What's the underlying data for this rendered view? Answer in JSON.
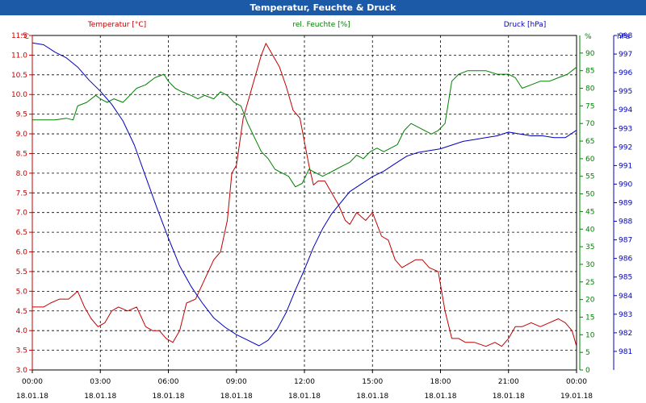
{
  "window": {
    "title": "Temperatur, Feuchte & Druck"
  },
  "chart_data": {
    "type": "line",
    "x_ticks": [
      {
        "time": "00:00",
        "date": "18.01.18"
      },
      {
        "time": "03:00",
        "date": "18.01.18"
      },
      {
        "time": "06:00",
        "date": "18.01.18"
      },
      {
        "time": "09:00",
        "date": "18.01.18"
      },
      {
        "time": "12:00",
        "date": "18.01.18"
      },
      {
        "time": "15:00",
        "date": "18.01.18"
      },
      {
        "time": "18:00",
        "date": "18.01.18"
      },
      {
        "time": "21:00",
        "date": "18.01.18"
      },
      {
        "time": "00:00",
        "date": "19.01.18"
      }
    ],
    "xlim": [
      0,
      24
    ],
    "grid": true,
    "axes": {
      "temperature": {
        "label": "Temperatur [°C]",
        "unit": "°C",
        "ylim": [
          3.0,
          11.5
        ],
        "step": 0.5,
        "color": "#c00000"
      },
      "humidity": {
        "label": "rel. Feuchte [%]",
        "unit": "%",
        "ylim": [
          0,
          95
        ],
        "step": 5,
        "color": "#008000"
      },
      "pressure": {
        "label": "Druck [hPa]",
        "unit": "hPa",
        "ylim": [
          980.0,
          998.0
        ],
        "step": 1,
        "color": "#0000c0"
      }
    },
    "series": [
      {
        "name": "Temperatur [°C]",
        "axis": "temperature",
        "color": "#c00000",
        "x": [
          0,
          0.5,
          0.8,
          1.2,
          1.6,
          2.0,
          2.3,
          2.6,
          2.9,
          3.2,
          3.5,
          3.8,
          4.2,
          4.6,
          5.0,
          5.3,
          5.6,
          5.9,
          6.2,
          6.5,
          6.8,
          7.2,
          7.6,
          8.0,
          8.3,
          8.6,
          8.8,
          9.0,
          9.3,
          9.6,
          9.9,
          10.1,
          10.3,
          10.6,
          10.9,
          11.2,
          11.5,
          11.8,
          12.0,
          12.2,
          12.4,
          12.6,
          12.9,
          13.2,
          13.5,
          13.8,
          14.0,
          14.3,
          14.7,
          15.0,
          15.4,
          15.7,
          16.0,
          16.3,
          16.6,
          16.9,
          17.2,
          17.5,
          17.9,
          18.2,
          18.5,
          18.8,
          19.1,
          19.5,
          20.0,
          20.4,
          20.7,
          21.0,
          21.3,
          21.6,
          22.0,
          22.4,
          22.8,
          23.2,
          23.5,
          23.8,
          24.0
        ],
        "y": [
          4.6,
          4.6,
          4.7,
          4.8,
          4.8,
          5.0,
          4.6,
          4.3,
          4.1,
          4.2,
          4.5,
          4.6,
          4.5,
          4.6,
          4.1,
          4.0,
          4.0,
          3.8,
          3.7,
          4.0,
          4.7,
          4.8,
          5.3,
          5.8,
          6.0,
          6.8,
          8.0,
          8.2,
          9.4,
          10.0,
          10.6,
          11.0,
          11.3,
          11.0,
          10.7,
          10.2,
          9.6,
          9.4,
          8.8,
          8.2,
          7.7,
          7.8,
          7.8,
          7.5,
          7.2,
          6.8,
          6.7,
          7.0,
          6.8,
          7.0,
          6.4,
          6.3,
          5.8,
          5.6,
          5.7,
          5.8,
          5.8,
          5.6,
          5.5,
          4.5,
          3.8,
          3.8,
          3.7,
          3.7,
          3.6,
          3.7,
          3.6,
          3.8,
          4.1,
          4.1,
          4.2,
          4.1,
          4.2,
          4.3,
          4.2,
          4.0,
          3.6
        ]
      },
      {
        "name": "rel. Feuchte [%]",
        "axis": "humidity",
        "color": "#008000",
        "x": [
          0,
          0.5,
          1.0,
          1.5,
          1.8,
          2.0,
          2.4,
          2.8,
          3.0,
          3.3,
          3.6,
          4.0,
          4.3,
          4.6,
          5.0,
          5.4,
          5.8,
          6.0,
          6.3,
          6.6,
          7.0,
          7.3,
          7.6,
          8.0,
          8.3,
          8.6,
          8.9,
          9.2,
          9.5,
          9.8,
          10.1,
          10.4,
          10.7,
          11.0,
          11.3,
          11.6,
          11.9,
          12.2,
          12.5,
          12.8,
          13.1,
          13.4,
          13.7,
          14.0,
          14.3,
          14.6,
          14.9,
          15.2,
          15.5,
          15.8,
          16.1,
          16.4,
          16.7,
          17.0,
          17.3,
          17.6,
          17.9,
          18.2,
          18.5,
          18.8,
          19.2,
          19.6,
          20.0,
          20.5,
          21.0,
          21.3,
          21.6,
          22.0,
          22.4,
          22.8,
          23.2,
          23.6,
          24.0
        ],
        "y": [
          71,
          71,
          71,
          71.5,
          71,
          75,
          76,
          78,
          77,
          76,
          77,
          76,
          78,
          80,
          81,
          83,
          84,
          82,
          80,
          79,
          78,
          77,
          78,
          77,
          79,
          78,
          76,
          75,
          70,
          66,
          62,
          60,
          57,
          56,
          55,
          52,
          53,
          57,
          56,
          55,
          56,
          57,
          58,
          59,
          61,
          60,
          62,
          63,
          62,
          63,
          64,
          68,
          70,
          69,
          68,
          67,
          68,
          70,
          82,
          84,
          85,
          85,
          85,
          84,
          84,
          83,
          80,
          81,
          82,
          82,
          83,
          84,
          86
        ]
      },
      {
        "name": "Druck [hPa]",
        "axis": "pressure",
        "color": "#0000c0",
        "x": [
          0,
          0.5,
          1.0,
          1.5,
          2.0,
          2.5,
          3.0,
          3.5,
          4.0,
          4.5,
          5.0,
          5.5,
          6.0,
          6.5,
          7.0,
          7.5,
          8.0,
          8.5,
          9.0,
          9.5,
          10.0,
          10.4,
          10.8,
          11.2,
          11.6,
          12.0,
          12.4,
          12.8,
          13.2,
          13.6,
          14.0,
          14.5,
          15.0,
          15.5,
          16.0,
          16.5,
          17.0,
          17.5,
          18.0,
          18.5,
          19.0,
          19.5,
          20.0,
          20.5,
          21.0,
          21.5,
          22.0,
          22.5,
          23.0,
          23.5,
          24.0
        ],
        "y": [
          997.6,
          997.5,
          997.1,
          996.8,
          996.3,
          995.6,
          995.0,
          994.3,
          993.4,
          992.1,
          990.4,
          988.7,
          987.1,
          985.6,
          984.5,
          983.6,
          982.8,
          982.3,
          981.9,
          981.6,
          981.3,
          981.6,
          982.2,
          983.1,
          984.3,
          985.4,
          986.6,
          987.6,
          988.4,
          989.0,
          989.6,
          990.0,
          990.4,
          990.7,
          991.1,
          991.5,
          991.7,
          991.8,
          991.9,
          992.1,
          992.3,
          992.4,
          992.5,
          992.6,
          992.8,
          992.7,
          992.6,
          992.6,
          992.5,
          992.5,
          992.9
        ]
      }
    ]
  }
}
